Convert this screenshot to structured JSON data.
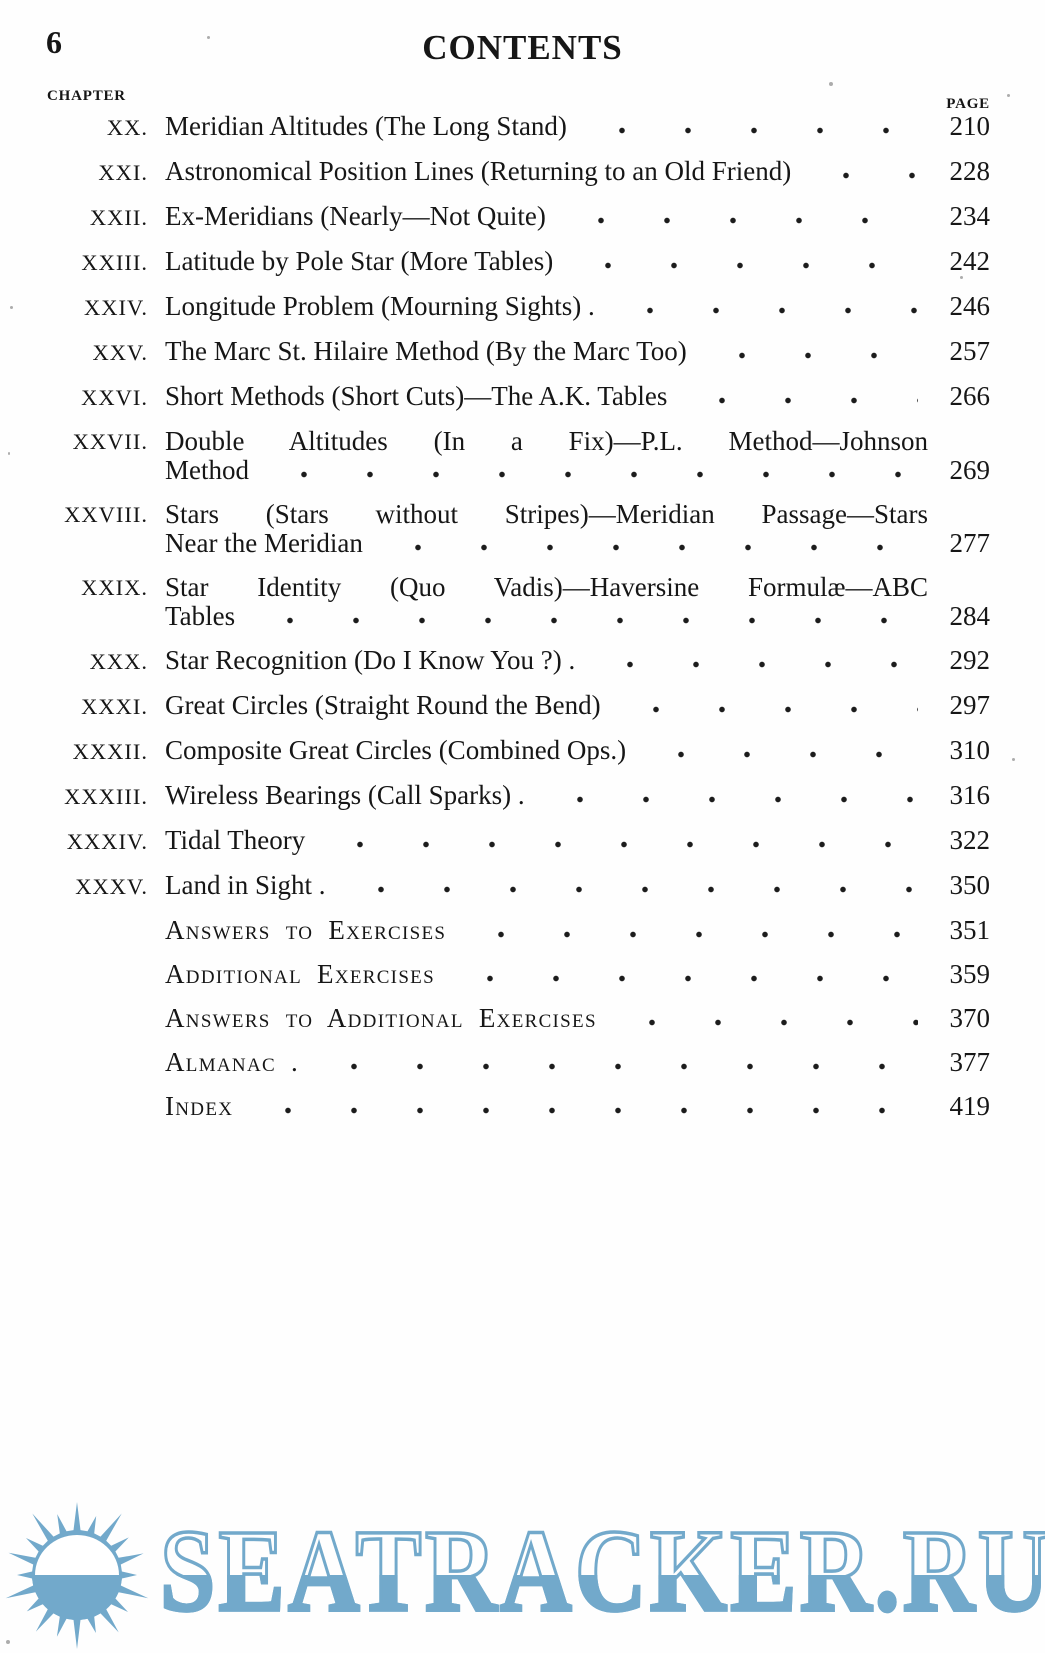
{
  "page": {
    "number": "6",
    "title": "CONTENTS"
  },
  "headers": {
    "chapter": "CHAPTER",
    "page": "PAGE"
  },
  "entries": [
    {
      "numeral": "XX.",
      "title": "Meridian Altitudes (The Long Stand)",
      "page": "210"
    },
    {
      "numeral": "XXI.",
      "title": "Astronomical Position Lines (Returning to an Old Friend)",
      "page": "228"
    },
    {
      "numeral": "XXII.",
      "title": "Ex-Meridians (Nearly—Not Quite)",
      "page": "234"
    },
    {
      "numeral": "XXIII.",
      "title": "Latitude by Pole Star (More Tables)",
      "page": "242"
    },
    {
      "numeral": "XXIV.",
      "title": "Longitude Problem (Mourning Sights) .",
      "page": "246"
    },
    {
      "numeral": "XXV.",
      "title": "The Marc St. Hilaire Method (By the Marc Too)",
      "page": "257"
    },
    {
      "numeral": "XXVI.",
      "title": "Short Methods (Short Cuts)—The A.K. Tables",
      "page": "266"
    },
    {
      "numeral": "XXVII.",
      "line1": "Double Altitudes (In a Fix)—P.L. Method—Johnson",
      "line2": "Method",
      "page": "269"
    },
    {
      "numeral": "XXVIII.",
      "line1": "Stars (Stars without Stripes)—Meridian Passage—Stars",
      "line2": "Near the Meridian",
      "page": "277"
    },
    {
      "numeral": "XXIX.",
      "line1": "Star Identity (Quo Vadis)—Haversine Formulæ—ABC",
      "line2": "Tables",
      "page": "284"
    },
    {
      "numeral": "XXX.",
      "title": "Star Recognition (Do I Know You ?) .",
      "page": "292"
    },
    {
      "numeral": "XXXI.",
      "title": "Great Circles (Straight Round the Bend)",
      "page": "297"
    },
    {
      "numeral": "XXXII.",
      "title": "Composite Great Circles (Combined Ops.)",
      "page": "310"
    },
    {
      "numeral": "XXXIII.",
      "title": "Wireless Bearings (Call Sparks) .",
      "page": "316"
    },
    {
      "numeral": "XXXIV.",
      "title": "Tidal Theory",
      "page": "322"
    },
    {
      "numeral": "XXXV.",
      "title": "Land in Sight .",
      "page": "350"
    },
    {
      "numeral": "",
      "title": "Answers to Exercises",
      "page": "351",
      "smallcaps": true
    },
    {
      "numeral": "",
      "title": "Additional Exercises",
      "page": "359",
      "smallcaps": true
    },
    {
      "numeral": "",
      "title": "Answers to Additional Exercises",
      "page": "370",
      "smallcaps": true
    },
    {
      "numeral": "",
      "title": "Almanac .",
      "page": "377",
      "smallcaps": true
    },
    {
      "numeral": "",
      "title": "Index",
      "page": "419",
      "smallcaps": true
    }
  ],
  "watermark": {
    "text": "SEATRACKER.RU",
    "color": "#72A9CB",
    "logo": "rising-sun-over-sea"
  }
}
